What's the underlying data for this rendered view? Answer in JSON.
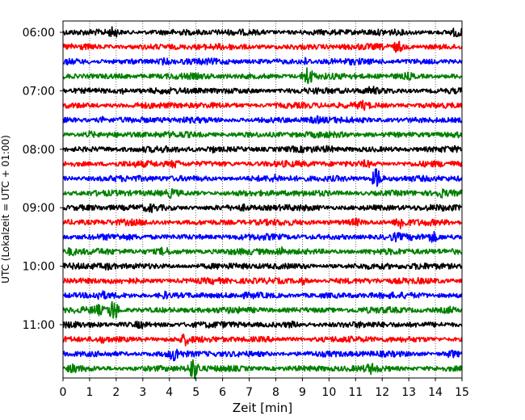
{
  "chart_data": {
    "type": "line",
    "title": "",
    "xlabel": "Zeit  [min]",
    "ylabel": "UTC (Lokalzeit = UTC + 01:00)",
    "xlim": [
      0,
      15
    ],
    "x_ticks": [
      0,
      1,
      2,
      3,
      4,
      5,
      6,
      7,
      8,
      9,
      10,
      11,
      12,
      13,
      14,
      15
    ],
    "x_tick_labels": [
      "0",
      "1",
      "2",
      "3",
      "4",
      "5",
      "6",
      "7",
      "8",
      "9",
      "10",
      "11",
      "12",
      "13",
      "14",
      "15"
    ],
    "y_tick_labels": [
      "06:00",
      "07:00",
      "08:00",
      "09:00",
      "10:00",
      "11:00"
    ],
    "grid": "vertical dotted",
    "trace_colors": [
      "#000000",
      "#ff0000",
      "#0000ff",
      "#008000"
    ],
    "traces_per_hour": 4,
    "trace_minutes": 15,
    "traces": [
      {
        "start": "06:00",
        "events": [
          {
            "min": 1.9,
            "amp": 1.6
          },
          {
            "min": 14.8,
            "amp": 1.5
          }
        ]
      },
      {
        "start": "06:15",
        "events": [
          {
            "min": 12.6,
            "amp": 1.7
          }
        ]
      },
      {
        "start": "06:30",
        "events": [
          {
            "min": 3.8,
            "amp": 1.3
          },
          {
            "min": 9.1,
            "amp": 1.4
          }
        ]
      },
      {
        "start": "06:45",
        "events": [
          {
            "min": 9.2,
            "amp": 2.4
          },
          {
            "min": 13.0,
            "amp": 1.3
          }
        ]
      },
      {
        "start": "07:00",
        "events": [
          {
            "min": 2.2,
            "amp": 1.3
          },
          {
            "min": 11.6,
            "amp": 1.4
          }
        ]
      },
      {
        "start": "07:15",
        "events": [
          {
            "min": 11.3,
            "amp": 1.4
          }
        ]
      },
      {
        "start": "07:30",
        "events": [
          {
            "min": 1.5,
            "amp": 1.3
          },
          {
            "min": 9.5,
            "amp": 1.3
          }
        ]
      },
      {
        "start": "07:45",
        "events": [
          {
            "min": 1.0,
            "amp": 1.3
          }
        ]
      },
      {
        "start": "08:00",
        "events": [
          {
            "min": 5.6,
            "amp": 1.3
          },
          {
            "min": 10.0,
            "amp": 1.2
          }
        ]
      },
      {
        "start": "08:15",
        "events": [
          {
            "min": 4.2,
            "amp": 1.4
          },
          {
            "min": 11.4,
            "amp": 1.3
          }
        ]
      },
      {
        "start": "08:30",
        "events": [
          {
            "min": 11.8,
            "amp": 2.6
          },
          {
            "min": 8.0,
            "amp": 1.2
          }
        ]
      },
      {
        "start": "08:45",
        "events": [
          {
            "min": 4.1,
            "amp": 1.4
          },
          {
            "min": 14.2,
            "amp": 1.4
          }
        ]
      },
      {
        "start": "09:00",
        "events": [
          {
            "min": 3.3,
            "amp": 1.3
          },
          {
            "min": 6.8,
            "amp": 1.2
          }
        ]
      },
      {
        "start": "09:15",
        "events": [
          {
            "min": 12.7,
            "amp": 1.9
          },
          {
            "min": 11.0,
            "amp": 1.3
          }
        ]
      },
      {
        "start": "09:30",
        "events": [
          {
            "min": 13.9,
            "amp": 1.6
          },
          {
            "min": 12.5,
            "amp": 1.3
          }
        ]
      },
      {
        "start": "09:45",
        "events": [
          {
            "min": 0.3,
            "amp": 1.4
          },
          {
            "min": 3.8,
            "amp": 1.4
          },
          {
            "min": 8.2,
            "amp": 1.5
          }
        ]
      },
      {
        "start": "10:00",
        "events": [
          {
            "min": 1.7,
            "amp": 1.3
          },
          {
            "min": 13.4,
            "amp": 1.2
          }
        ]
      },
      {
        "start": "10:15",
        "events": [
          {
            "min": 9.0,
            "amp": 1.4
          },
          {
            "min": 5.7,
            "amp": 1.2
          }
        ]
      },
      {
        "start": "10:30",
        "events": [
          {
            "min": 1.4,
            "amp": 1.4
          },
          {
            "min": 3.8,
            "amp": 1.4
          }
        ]
      },
      {
        "start": "10:45",
        "events": [
          {
            "min": 1.9,
            "amp": 2.6
          },
          {
            "min": 1.3,
            "amp": 1.5
          },
          {
            "min": 14.5,
            "amp": 1.3
          }
        ]
      },
      {
        "start": "11:00",
        "events": [
          {
            "min": 2.9,
            "amp": 1.3
          },
          {
            "min": 8.6,
            "amp": 1.2
          }
        ]
      },
      {
        "start": "11:15",
        "events": [
          {
            "min": 4.6,
            "amp": 1.6
          },
          {
            "min": 1.5,
            "amp": 1.3
          }
        ]
      },
      {
        "start": "11:30",
        "events": [
          {
            "min": 4.2,
            "amp": 1.9
          },
          {
            "min": 14.6,
            "amp": 1.4
          }
        ]
      },
      {
        "start": "11:45",
        "events": [
          {
            "min": 4.9,
            "amp": 2.6
          },
          {
            "min": 11.6,
            "amp": 1.5
          },
          {
            "min": 0.4,
            "amp": 1.3
          }
        ]
      }
    ]
  }
}
